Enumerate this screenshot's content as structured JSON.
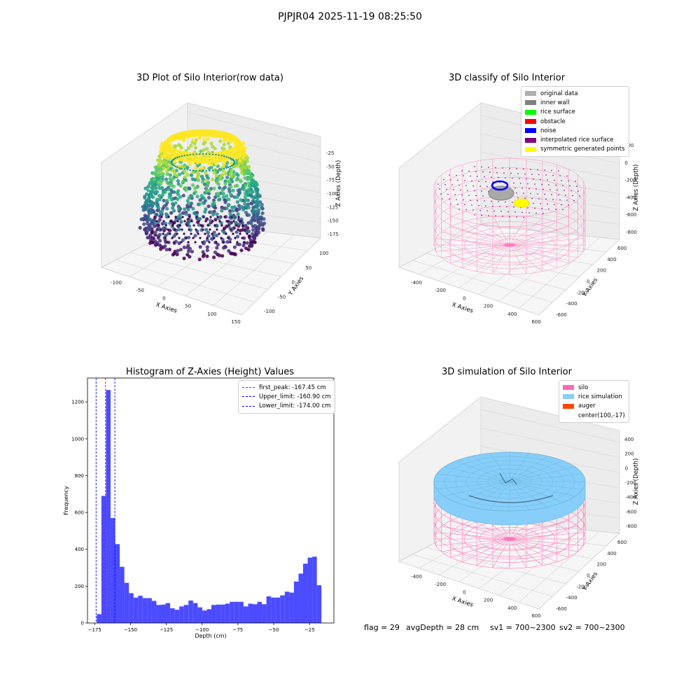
{
  "suptitle": "PJPJR04 2025-11-19 08:25:50",
  "footer": {
    "flag": "flag = 29",
    "avg_depth": "avgDepth = 28 cm",
    "sv1": "sv1 = 700~2300",
    "sv2": "sv2 = 700~2300"
  },
  "colors": {
    "hist_bar": "#4b4bff",
    "silo": "#ff69b4",
    "rice": "#87cefa",
    "auger": "#ff4500",
    "noise": "#0000ff",
    "symmetric": "#ffff00"
  },
  "chart_data": [
    {
      "type": "scatter",
      "title": "3D Plot of Silo Interior(row data)",
      "xlabel": "X Axies",
      "ylabel": "Y Axies",
      "zlabel": "Z Axies (Depth)",
      "x_ticks": [
        "-100",
        "-50",
        "0",
        "50",
        "100",
        "150"
      ],
      "y_ticks": [
        "-100",
        "-50",
        "0",
        "50",
        "100"
      ],
      "z_ticks": [
        "-25",
        "-50",
        "-75",
        "-100",
        "-125",
        "-150",
        "-175"
      ],
      "zlim": [
        -185,
        -10
      ],
      "colormap": "viridis"
    },
    {
      "type": "scatter",
      "title": "3D classify of Silo Interior",
      "xlabel": "X Axies",
      "ylabel": "Y Axies",
      "zlabel": "Z Axies (Depth)",
      "x_ticks": [
        "-400",
        "-200",
        "0",
        "200",
        "400",
        "600"
      ],
      "y_ticks": [
        "-600",
        "-400",
        "-200",
        "0",
        "200",
        "400",
        "600"
      ],
      "z_ticks": [
        "200",
        "0",
        "-200",
        "-400",
        "-600",
        "-800"
      ],
      "legend_position": "top-right",
      "legend": [
        {
          "label": "original data",
          "color": "#b0b0b0"
        },
        {
          "label": "inner wall",
          "color": "#808080"
        },
        {
          "label": "rice surface",
          "color": "#00ff00"
        },
        {
          "label": "obstacle",
          "color": "#ff0000"
        },
        {
          "label": "noise",
          "color": "#0000ff"
        },
        {
          "label": "interpolated rice surface",
          "color": "#800080"
        },
        {
          "label": "symmetric generated points",
          "color": "#ffff00"
        }
      ]
    },
    {
      "type": "bar",
      "title": "Histogram of Z-Axies (Height) Values",
      "xlabel": "Depth (cm)",
      "ylabel": "Frequency",
      "xlim": [
        -180,
        -8
      ],
      "ylim": [
        0,
        1330
      ],
      "x_ticks": [
        -175,
        -150,
        -125,
        -100,
        -75,
        -50,
        -25
      ],
      "y_ticks": [
        0,
        200,
        400,
        600,
        800,
        1000,
        1200
      ],
      "bin_start": -173.5,
      "bin_width": 3.2,
      "values": [
        48,
        690,
        1265,
        570,
        428,
        305,
        218,
        162,
        138,
        148,
        135,
        135,
        120,
        98,
        100,
        108,
        80,
        72,
        90,
        98,
        122,
        108,
        85,
        68,
        75,
        98,
        100,
        100,
        105,
        115,
        115,
        115,
        90,
        105,
        102,
        115,
        102,
        145,
        138,
        138,
        150,
        170,
        165,
        225,
        268,
        322,
        355,
        360,
        205
      ],
      "vlines": [
        {
          "label": "first_peak: -167.45 cm",
          "x": -167.45,
          "color": "#ff0000"
        },
        {
          "label": "Upper_limit: -160.90 cm",
          "x": -160.9,
          "color": "#0000ff"
        },
        {
          "label": "Lower_limit: -174.00 cm",
          "x": -174.0,
          "color": "#0000ff"
        }
      ],
      "legend_position": "top-right"
    },
    {
      "type": "scatter",
      "title": "3D simulation of Silo Interior",
      "xlabel": "X Axies",
      "ylabel": "Y Axies",
      "zlabel": "Z Axies (Depth)",
      "x_ticks": [
        "-400",
        "-200",
        "0",
        "200",
        "400",
        "600"
      ],
      "y_ticks": [
        "-600",
        "-400",
        "-200",
        "0",
        "200",
        "400",
        "600"
      ],
      "z_ticks": [
        "400",
        "200",
        "0",
        "-200",
        "-400",
        "-600",
        "-800"
      ],
      "legend_position": "top-right",
      "legend": [
        {
          "label": "silo",
          "color": "#ff69b4"
        },
        {
          "label": "rice simulation",
          "color": "#87cefa"
        },
        {
          "label": "auger",
          "color": "#ff4500"
        },
        {
          "label": "center(100,-17)",
          "color": ""
        }
      ]
    }
  ]
}
